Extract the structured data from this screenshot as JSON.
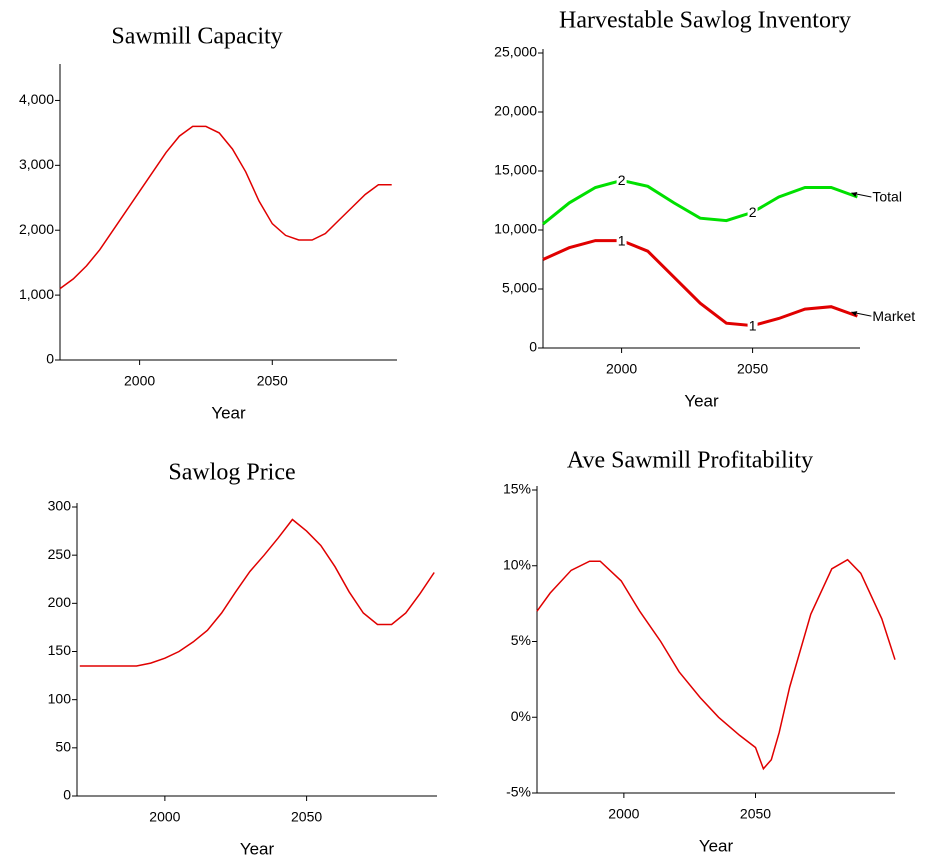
{
  "chart_data": [
    {
      "type": "line",
      "title": "Sawmill Capacity",
      "x_label": "Year",
      "x": [
        1970,
        1975,
        1980,
        1985,
        1990,
        1995,
        2000,
        2005,
        2010,
        2015,
        2020,
        2025,
        2030,
        2035,
        2040,
        2045,
        2050,
        2055,
        2060,
        2065,
        2070,
        2075,
        2080,
        2085,
        2090,
        2095
      ],
      "values": [
        1100,
        1250,
        1450,
        1700,
        2000,
        2300,
        2600,
        2900,
        3200,
        3450,
        3600,
        3600,
        3500,
        3250,
        2900,
        2450,
        2100,
        1920,
        1850,
        1850,
        1950,
        2150,
        2350,
        2550,
        2700,
        2700
      ],
      "color": "#e00000",
      "xlim": [
        1970,
        2097
      ],
      "xticks": [
        2000,
        2050
      ],
      "ylim": [
        0,
        4500
      ],
      "yticks": [
        0,
        {
          "value": 1000,
          "label": "1,000"
        },
        {
          "value": 2000,
          "label": "2,000"
        },
        {
          "value": 3000,
          "label": "3,000"
        },
        {
          "value": 4000,
          "label": "4,000"
        }
      ]
    },
    {
      "type": "line",
      "title": "Harvestable Sawlog Inventory",
      "x_label": "Year",
      "x": [
        1970,
        1980,
        1990,
        2000,
        2010,
        2020,
        2030,
        2040,
        2050,
        2060,
        2070,
        2080,
        2090
      ],
      "series": [
        {
          "name": "Total",
          "marker_label": "2",
          "color": "#00e000",
          "values": [
            10500,
            12300,
            13600,
            14200,
            13700,
            12300,
            11000,
            10800,
            11500,
            12800,
            13600,
            13600,
            12800
          ]
        },
        {
          "name": "Market",
          "marker_label": "1",
          "color": "#e00000",
          "values": [
            7500,
            8500,
            9100,
            9100,
            8200,
            6000,
            3800,
            2100,
            1900,
            2500,
            3300,
            3500,
            2700
          ]
        }
      ],
      "xlim": [
        1970,
        2091
      ],
      "xticks": [
        2000,
        2050
      ],
      "ylim": [
        0,
        25000
      ],
      "yticks": [
        0,
        {
          "value": 5000,
          "label": "5,000"
        },
        {
          "value": 10000,
          "label": "10,000"
        },
        {
          "value": 15000,
          "label": "15,000"
        },
        {
          "value": 20000,
          "label": "20,000"
        },
        {
          "value": 25000,
          "label": "25,000"
        }
      ]
    },
    {
      "type": "line",
      "title": "Sawlog Price",
      "x_label": "Year",
      "x": [
        1970,
        1990,
        1995,
        2000,
        2005,
        2010,
        2015,
        2020,
        2025,
        2030,
        2035,
        2040,
        2045,
        2050,
        2055,
        2060,
        2065,
        2070,
        2075,
        2080,
        2085,
        2090,
        2095
      ],
      "values": [
        135,
        135,
        138,
        143,
        150,
        160,
        172,
        190,
        212,
        233,
        250,
        268,
        287,
        275,
        260,
        238,
        212,
        190,
        178,
        178,
        190,
        210,
        232
      ],
      "color": "#e00000",
      "xlim": [
        1969,
        2096
      ],
      "xticks": [
        2000,
        2050
      ],
      "ylim": [
        0,
        300
      ],
      "yticks": [
        0,
        50,
        100,
        150,
        200,
        250,
        300
      ]
    },
    {
      "type": "line",
      "title": "Ave Sawmill Profitability",
      "x_label": "Year",
      "x": [
        1967,
        1972,
        1980,
        1987,
        1991,
        1999,
        2006,
        2014,
        2021,
        2029,
        2036,
        2044,
        2050,
        2053,
        2056,
        2059,
        2063,
        2071,
        2079,
        2085,
        2090,
        2098,
        2103
      ],
      "values": [
        7.0,
        8.2,
        9.7,
        10.3,
        10.3,
        9.0,
        7.0,
        5.0,
        3.0,
        1.3,
        0,
        -1.2,
        -2.0,
        -3.4,
        -2.8,
        -1.0,
        2.0,
        6.8,
        9.8,
        10.4,
        9.5,
        6.5,
        3.8
      ],
      "color": "#e00000",
      "xlim": [
        1967,
        2103
      ],
      "xticks": [
        2000,
        2050
      ],
      "ylim": [
        -5,
        15
      ],
      "yticks": [
        {
          "value": -5,
          "label": "-5%"
        },
        {
          "value": 0,
          "label": "0%"
        },
        {
          "value": 5,
          "label": "5%"
        },
        {
          "value": 10,
          "label": "10%"
        },
        {
          "value": 15,
          "label": "15%"
        }
      ]
    }
  ]
}
